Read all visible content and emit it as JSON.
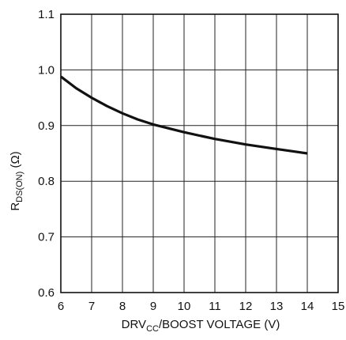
{
  "chart_data": {
    "type": "line",
    "title": "",
    "xlabel": {
      "main": "DRV",
      "sub": "CC",
      "rest": "/BOOST VOLTAGE (V)"
    },
    "ylabel": {
      "main": "R",
      "sub": "DS(ON)",
      "rest": " (Ω)"
    },
    "xlim": [
      6,
      15
    ],
    "ylim": [
      0.6,
      1.1
    ],
    "x_ticks": [
      6,
      7,
      8,
      9,
      10,
      11,
      12,
      13,
      14,
      15
    ],
    "y_ticks": [
      0.6,
      0.7,
      0.8,
      0.9,
      1.0,
      1.1
    ],
    "x_tick_labels": [
      "6",
      "7",
      "8",
      "9",
      "10",
      "11",
      "12",
      "13",
      "14",
      "15"
    ],
    "y_tick_labels": [
      "0.6",
      "0.7",
      "0.8",
      "0.9",
      "1.0",
      "1.1"
    ],
    "grid": true,
    "series": [
      {
        "x": [
          6,
          6.5,
          7,
          7.5,
          8,
          8.5,
          9,
          9.5,
          10,
          10.5,
          11,
          11.5,
          12,
          12.5,
          13,
          13.5,
          14
        ],
        "values": [
          0.988,
          0.967,
          0.95,
          0.935,
          0.922,
          0.911,
          0.902,
          0.895,
          0.888,
          0.882,
          0.876,
          0.871,
          0.866,
          0.862,
          0.858,
          0.854,
          0.85
        ],
        "color": "#111111"
      }
    ]
  }
}
